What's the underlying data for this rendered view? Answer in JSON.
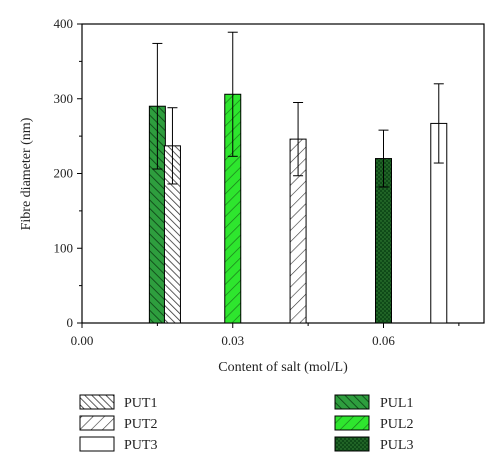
{
  "chart_data": {
    "type": "bar",
    "title": "",
    "xlabel": "Content of salt (mol/L)",
    "ylabel": "Fibre diameter (nm)",
    "xlim": [
      0.0,
      0.08
    ],
    "ylim": [
      0,
      400
    ],
    "x_ticks": [
      "0.00",
      "0.03",
      "0.06"
    ],
    "x_tick_values": [
      0.0,
      0.03,
      0.06
    ],
    "y_ticks": [
      "0",
      "100",
      "200",
      "300",
      "400"
    ],
    "y_tick_values": [
      0,
      100,
      200,
      300,
      400
    ],
    "grid": false,
    "legend_placement": "bottom",
    "series": [
      {
        "name": "PUL1",
        "x": 0.015,
        "value": 290,
        "error": 84,
        "fill": "#2e9e3e",
        "pattern": "diagonal"
      },
      {
        "name": "PUT1",
        "x": 0.018,
        "value": 237,
        "error": 51,
        "fill": "#ffffff",
        "pattern": "dense-diagonal"
      },
      {
        "name": "PUL2",
        "x": 0.03,
        "value": 306,
        "error": 83,
        "fill": "#2ee62e",
        "pattern": "diagonal"
      },
      {
        "name": "PUT2",
        "x": 0.043,
        "value": 246,
        "error": 49,
        "fill": "#ffffff",
        "pattern": "diagonal"
      },
      {
        "name": "PUL3",
        "x": 0.06,
        "value": 220,
        "error": 38,
        "fill": "#0f4a18",
        "pattern": "dots"
      },
      {
        "name": "PUT3",
        "x": 0.071,
        "value": 267,
        "error": 53,
        "fill": "#ffffff",
        "pattern": "none"
      }
    ],
    "legend_left": [
      "PUT1",
      "PUT2",
      "PUT3"
    ],
    "legend_right": [
      "PUL1",
      "PUL2",
      "PUL3"
    ]
  }
}
